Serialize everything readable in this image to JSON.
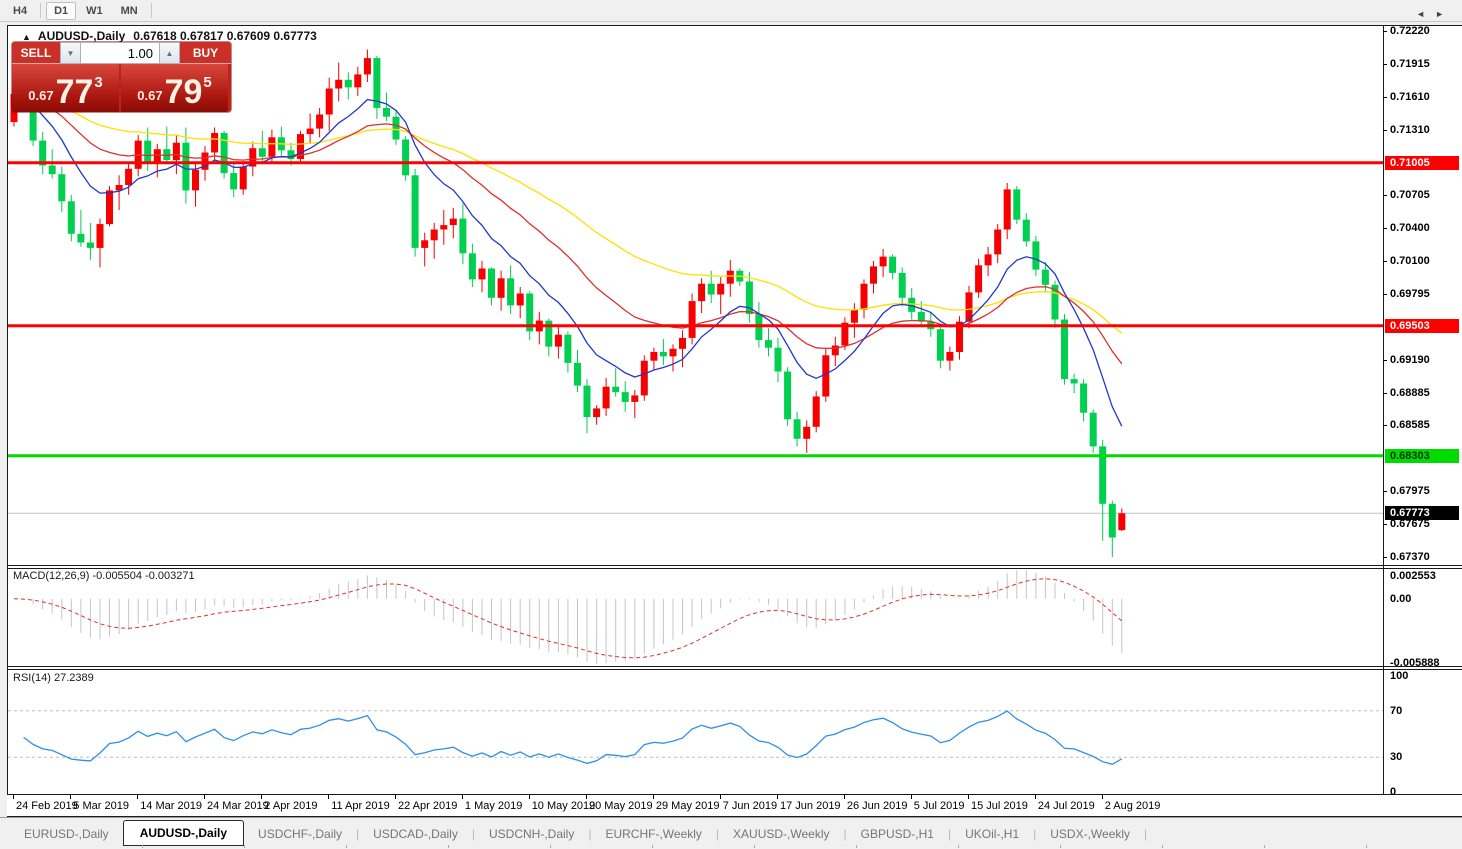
{
  "toolbar": {
    "timeframes": [
      "H4",
      "D1",
      "W1",
      "MN"
    ],
    "active_timeframe": "D1"
  },
  "chart": {
    "title": "AUDUSD-,Daily",
    "ohlc_text": "0.67618 0.67817 0.67609 0.67773",
    "collapse_icon": "panel-collapse-triangle"
  },
  "trade_panel": {
    "sell_label": "SELL",
    "buy_label": "BUY",
    "volume": "1.00",
    "sell_price": {
      "prefix": "0.67",
      "big": "77",
      "sup": "3"
    },
    "buy_price": {
      "prefix": "0.67",
      "big": "79",
      "sup": "5"
    }
  },
  "chart_data": {
    "type": "candlestick",
    "symbol": "AUDUSD-",
    "timeframe": "Daily",
    "ylim": [
      0.67296,
      0.72248
    ],
    "y_ticks": [
      "0.72220",
      "0.71915",
      "0.71610",
      "0.71310",
      "0.70705",
      "0.70400",
      "0.70100",
      "0.69795",
      "0.69190",
      "0.68885",
      "0.68585",
      "0.67975",
      "0.67675",
      "0.67370"
    ],
    "hlines": [
      {
        "value": 0.71005,
        "label": "0.71005",
        "color": "#ff0000",
        "text_color": "#ffffff"
      },
      {
        "value": 0.69503,
        "label": "0.69503",
        "color": "#ff0000",
        "text_color": "#ffffff"
      },
      {
        "value": 0.68303,
        "label": "0.68303",
        "color": "#00dc00",
        "text_color": "#003300"
      }
    ],
    "current_price": {
      "value": 0.67773,
      "label": "0.67773",
      "line_color": "#c0c0c0",
      "tag_bg": "#000000",
      "tag_text": "#ffffff"
    },
    "moving_averages": [
      {
        "period": 50,
        "color": "#ffdf00"
      },
      {
        "period": 25,
        "color": "#dc3030"
      },
      {
        "period": 10,
        "color": "#2038c8"
      }
    ],
    "candle_colors": {
      "up": "#f60000",
      "down": "#00cf50"
    },
    "x_ticks": [
      {
        "label": "24 Feb 2019",
        "index": 0
      },
      {
        "label": "5 Mar 2019",
        "index": 6
      },
      {
        "label": "14 Mar 2019",
        "index": 13
      },
      {
        "label": "24 Mar 2019",
        "index": 20
      },
      {
        "label": "2 Apr 2019",
        "index": 26
      },
      {
        "label": "11 Apr 2019",
        "index": 33
      },
      {
        "label": "22 Apr 2019",
        "index": 40
      },
      {
        "label": "1 May 2019",
        "index": 47
      },
      {
        "label": "10 May 2019",
        "index": 54
      },
      {
        "label": "20 May 2019",
        "index": 60
      },
      {
        "label": "29 May 2019",
        "index": 67
      },
      {
        "label": "7 Jun 2019",
        "index": 74
      },
      {
        "label": "17 Jun 2019",
        "index": 80
      },
      {
        "label": "26 Jun 2019",
        "index": 87
      },
      {
        "label": "5 Jul 2019",
        "index": 94
      },
      {
        "label": "15 Jul 2019",
        "index": 100
      },
      {
        "label": "24 Jul 2019",
        "index": 107
      },
      {
        "label": "2 Aug 2019",
        "index": 114
      }
    ],
    "candles": [
      [
        0.7138,
        0.7169,
        0.7134,
        0.7164
      ],
      [
        0.7164,
        0.7171,
        0.7148,
        0.7151
      ],
      [
        0.7151,
        0.7156,
        0.7116,
        0.7121
      ],
      [
        0.7121,
        0.7129,
        0.709,
        0.7098
      ],
      [
        0.7098,
        0.7113,
        0.7086,
        0.709
      ],
      [
        0.709,
        0.7097,
        0.7055,
        0.7065
      ],
      [
        0.7065,
        0.7071,
        0.7028,
        0.7035
      ],
      [
        0.7035,
        0.7057,
        0.7023,
        0.7027
      ],
      [
        0.7027,
        0.7045,
        0.7011,
        0.7022
      ],
      [
        0.7022,
        0.7049,
        0.7004,
        0.7044
      ],
      [
        0.7044,
        0.7079,
        0.7042,
        0.7075
      ],
      [
        0.7075,
        0.7089,
        0.7057,
        0.708
      ],
      [
        0.708,
        0.71,
        0.7071,
        0.7095
      ],
      [
        0.7095,
        0.7126,
        0.7088,
        0.7121
      ],
      [
        0.7121,
        0.7133,
        0.7093,
        0.71
      ],
      [
        0.71,
        0.7118,
        0.7087,
        0.7113
      ],
      [
        0.7113,
        0.7134,
        0.7099,
        0.7103
      ],
      [
        0.7103,
        0.7126,
        0.709,
        0.7119
      ],
      [
        0.7119,
        0.7133,
        0.7063,
        0.7075
      ],
      [
        0.7075,
        0.7101,
        0.706,
        0.7094
      ],
      [
        0.7094,
        0.7116,
        0.7084,
        0.711
      ],
      [
        0.711,
        0.7133,
        0.7102,
        0.7128
      ],
      [
        0.7128,
        0.713,
        0.7086,
        0.7091
      ],
      [
        0.7091,
        0.71,
        0.7069,
        0.7076
      ],
      [
        0.7076,
        0.7102,
        0.7071,
        0.7097
      ],
      [
        0.7097,
        0.712,
        0.7088,
        0.7114
      ],
      [
        0.7114,
        0.713,
        0.7099,
        0.7106
      ],
      [
        0.7106,
        0.7131,
        0.71,
        0.7124
      ],
      [
        0.7124,
        0.7134,
        0.7107,
        0.7112
      ],
      [
        0.7112,
        0.7119,
        0.7098,
        0.7104
      ],
      [
        0.7104,
        0.713,
        0.7102,
        0.7127
      ],
      [
        0.7127,
        0.7146,
        0.7118,
        0.7132
      ],
      [
        0.7132,
        0.7151,
        0.7124,
        0.7145
      ],
      [
        0.7145,
        0.7179,
        0.713,
        0.7169
      ],
      [
        0.7169,
        0.7193,
        0.7157,
        0.7177
      ],
      [
        0.7177,
        0.7184,
        0.7159,
        0.717
      ],
      [
        0.717,
        0.7189,
        0.7162,
        0.7182
      ],
      [
        0.7182,
        0.7205,
        0.7175,
        0.7197
      ],
      [
        0.7197,
        0.7199,
        0.7141,
        0.7151
      ],
      [
        0.7151,
        0.7165,
        0.7139,
        0.7143
      ],
      [
        0.7143,
        0.7148,
        0.7117,
        0.7122
      ],
      [
        0.7122,
        0.7125,
        0.7084,
        0.7089
      ],
      [
        0.7089,
        0.7095,
        0.7014,
        0.7022
      ],
      [
        0.7022,
        0.7036,
        0.7005,
        0.7029
      ],
      [
        0.7029,
        0.7045,
        0.7012,
        0.7039
      ],
      [
        0.7039,
        0.7057,
        0.7025,
        0.7043
      ],
      [
        0.7043,
        0.7059,
        0.7031,
        0.7049
      ],
      [
        0.7049,
        0.7063,
        0.7007,
        0.7017
      ],
      [
        0.7017,
        0.7026,
        0.6986,
        0.6993
      ],
      [
        0.6993,
        0.701,
        0.6981,
        0.7003
      ],
      [
        0.7003,
        0.7004,
        0.6969,
        0.6976
      ],
      [
        0.6976,
        0.7001,
        0.6964,
        0.6994
      ],
      [
        0.6994,
        0.7006,
        0.6961,
        0.6969
      ],
      [
        0.6969,
        0.6986,
        0.6957,
        0.698
      ],
      [
        0.698,
        0.6982,
        0.6937,
        0.6945
      ],
      [
        0.6945,
        0.6963,
        0.6933,
        0.6955
      ],
      [
        0.6955,
        0.6957,
        0.6922,
        0.6931
      ],
      [
        0.6931,
        0.6949,
        0.692,
        0.6942
      ],
      [
        0.6942,
        0.6945,
        0.6907,
        0.6916
      ],
      [
        0.6916,
        0.6928,
        0.6889,
        0.6895
      ],
      [
        0.6895,
        0.6901,
        0.6851,
        0.6866
      ],
      [
        0.6866,
        0.6877,
        0.6859,
        0.6874
      ],
      [
        0.6874,
        0.6902,
        0.6867,
        0.6894
      ],
      [
        0.6894,
        0.6911,
        0.6885,
        0.6889
      ],
      [
        0.6889,
        0.6899,
        0.6871,
        0.688
      ],
      [
        0.688,
        0.6891,
        0.6865,
        0.6886
      ],
      [
        0.6886,
        0.6923,
        0.6881,
        0.6918
      ],
      [
        0.6918,
        0.693,
        0.6909,
        0.6926
      ],
      [
        0.6926,
        0.6938,
        0.6914,
        0.6922
      ],
      [
        0.6922,
        0.6933,
        0.6908,
        0.6929
      ],
      [
        0.6929,
        0.6946,
        0.6912,
        0.6939
      ],
      [
        0.6939,
        0.698,
        0.6933,
        0.6973
      ],
      [
        0.6973,
        0.6994,
        0.6962,
        0.6989
      ],
      [
        0.6989,
        0.7001,
        0.6971,
        0.6979
      ],
      [
        0.6979,
        0.6995,
        0.6961,
        0.6989
      ],
      [
        0.6989,
        0.7011,
        0.6977,
        0.7001
      ],
      [
        0.7001,
        0.7003,
        0.6987,
        0.6991
      ],
      [
        0.6991,
        0.7,
        0.6953,
        0.6961
      ],
      [
        0.6961,
        0.6972,
        0.693,
        0.6937
      ],
      [
        0.6937,
        0.6948,
        0.6922,
        0.693
      ],
      [
        0.693,
        0.6939,
        0.6898,
        0.6908
      ],
      [
        0.6908,
        0.6912,
        0.6858,
        0.6864
      ],
      [
        0.6864,
        0.6871,
        0.6839,
        0.6846
      ],
      [
        0.6846,
        0.6863,
        0.6833,
        0.6857
      ],
      [
        0.6857,
        0.689,
        0.6852,
        0.6885
      ],
      [
        0.6885,
        0.693,
        0.688,
        0.6923
      ],
      [
        0.6923,
        0.694,
        0.6913,
        0.6932
      ],
      [
        0.6932,
        0.6958,
        0.6928,
        0.6953
      ],
      [
        0.6953,
        0.6971,
        0.6939,
        0.6965
      ],
      [
        0.6965,
        0.6993,
        0.6957,
        0.6989
      ],
      [
        0.6989,
        0.701,
        0.698,
        0.7005
      ],
      [
        0.7005,
        0.7021,
        0.6995,
        0.7014
      ],
      [
        0.7014,
        0.7016,
        0.6993,
        0.6999
      ],
      [
        0.6999,
        0.7004,
        0.6968,
        0.6976
      ],
      [
        0.6976,
        0.6985,
        0.6956,
        0.6963
      ],
      [
        0.6963,
        0.6973,
        0.6949,
        0.6954
      ],
      [
        0.6954,
        0.6963,
        0.694,
        0.6947
      ],
      [
        0.6947,
        0.6952,
        0.6911,
        0.6918
      ],
      [
        0.6918,
        0.6931,
        0.6909,
        0.6926
      ],
      [
        0.6926,
        0.6959,
        0.6919,
        0.6954
      ],
      [
        0.6954,
        0.6987,
        0.6948,
        0.6981
      ],
      [
        0.6981,
        0.7012,
        0.6976,
        0.7006
      ],
      [
        0.7006,
        0.7023,
        0.6996,
        0.7016
      ],
      [
        0.7016,
        0.7044,
        0.7008,
        0.7039
      ],
      [
        0.7039,
        0.7082,
        0.703,
        0.7076
      ],
      [
        0.7076,
        0.7079,
        0.7044,
        0.7048
      ],
      [
        0.7048,
        0.7054,
        0.7023,
        0.7028
      ],
      [
        0.7028,
        0.7033,
        0.6996,
        0.7002
      ],
      [
        0.7002,
        0.7009,
        0.6982,
        0.6988
      ],
      [
        0.6988,
        0.6992,
        0.6948,
        0.6956
      ],
      [
        0.6956,
        0.6961,
        0.6896,
        0.6901
      ],
      [
        0.6901,
        0.6906,
        0.6888,
        0.6897
      ],
      [
        0.6897,
        0.6901,
        0.6862,
        0.687
      ],
      [
        0.687,
        0.6873,
        0.6833,
        0.6839
      ],
      [
        0.6839,
        0.6845,
        0.6752,
        0.6786
      ],
      [
        0.6786,
        0.6789,
        0.6737,
        0.6755
      ],
      [
        0.67618,
        0.67817,
        0.67609,
        0.67773
      ]
    ],
    "macd": {
      "label": "MACD(12,26,9)",
      "value": "-0.005504",
      "signal": "-0.003271",
      "params": [
        12,
        26,
        9
      ],
      "axis_labels": {
        "top": "0.002553",
        "zero": "0.00",
        "bottom": "-0.005888"
      },
      "histogram_color": "#c4c4c4",
      "signal_color": "#e03030"
    },
    "rsi": {
      "label": "RSI(14)",
      "value": "27.2389",
      "period": 14,
      "levels": [
        70,
        30
      ],
      "axis_labels": [
        "100",
        "70",
        "30",
        "0"
      ],
      "line_color": "#2e90e8",
      "level_color": "#bdbdbd"
    }
  },
  "tabs": {
    "items": [
      "EURUSD-,Daily",
      "AUDUSD-,Daily",
      "USDCHF-,Daily",
      "USDCAD-,Daily",
      "USDCNH-,Daily",
      "EURCHF-,Weekly",
      "XAUUSD-,Weekly",
      "GBPUSD-,H1",
      "UKOil-,H1",
      "USDX-,Weekly"
    ],
    "active": "AUDUSD-,Daily",
    "scroll_left_icon": "◄",
    "scroll_right_icon": "►"
  },
  "colors": {
    "panel_red": "#b8251d",
    "toolbar_bg": "#f0f0f0",
    "chart_bg": "#ffffff"
  }
}
